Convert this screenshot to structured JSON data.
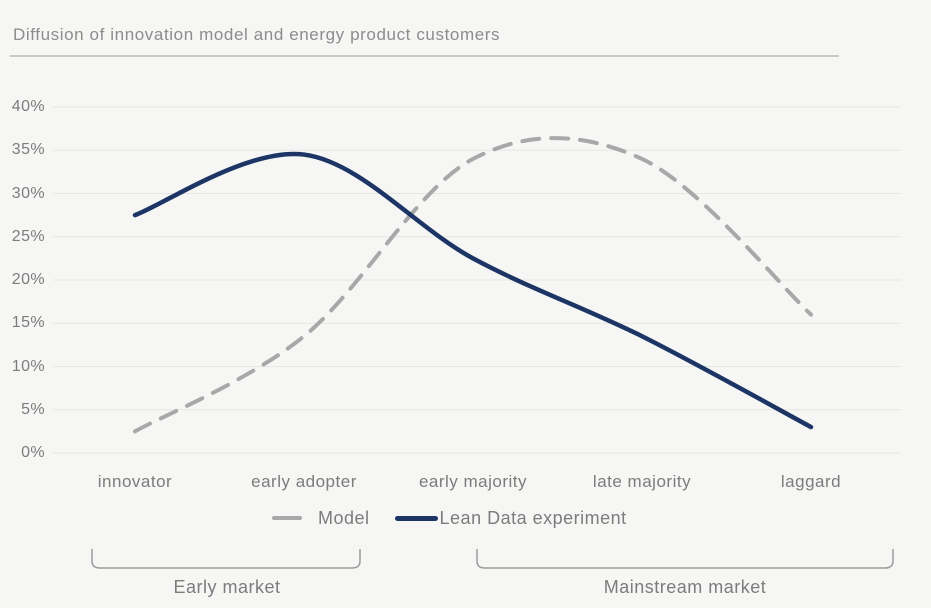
{
  "title": "Diffusion of innovation model and energy product customers",
  "colors": {
    "background": "#f6f6f5",
    "title_text": "#8c8c8c",
    "title_rule": "#c8c8c7",
    "gridline": "#e6e6e5",
    "axis_text": "#7c7c7c",
    "legend_text": "#7c7c7c",
    "bracket": "#9b9b9b",
    "model_line": "#a8a8a8",
    "experiment_line": "#1c3565"
  },
  "chart_data": {
    "type": "line",
    "smoothed": true,
    "categories": [
      "innovator",
      "early adopter",
      "early majority",
      "late majority",
      "laggard"
    ],
    "series": [
      {
        "name": "Model",
        "style": "dashed",
        "color": "#a8a8a8",
        "values": [
          2.5,
          13.5,
          34,
          34,
          16
        ]
      },
      {
        "name": "Lean Data experiment",
        "style": "solid",
        "color": "#1c3565",
        "values": [
          27.5,
          34.5,
          22.5,
          13.5,
          3
        ]
      }
    ],
    "xlabel": "",
    "ylabel": "",
    "ylim": [
      0,
      40
    ],
    "ytick_step": 5,
    "ytick_labels": [
      "0%",
      "5%",
      "10%",
      "15%",
      "20%",
      "25%",
      "30%",
      "35%",
      "40%"
    ],
    "grid": true,
    "legend_position": "bottom"
  },
  "annotations": [
    {
      "label": "Early market",
      "covers": [
        "innovator",
        "early adopter"
      ]
    },
    {
      "label": "Mainstream market",
      "covers": [
        "early majority",
        "late majority",
        "laggard"
      ]
    }
  ]
}
